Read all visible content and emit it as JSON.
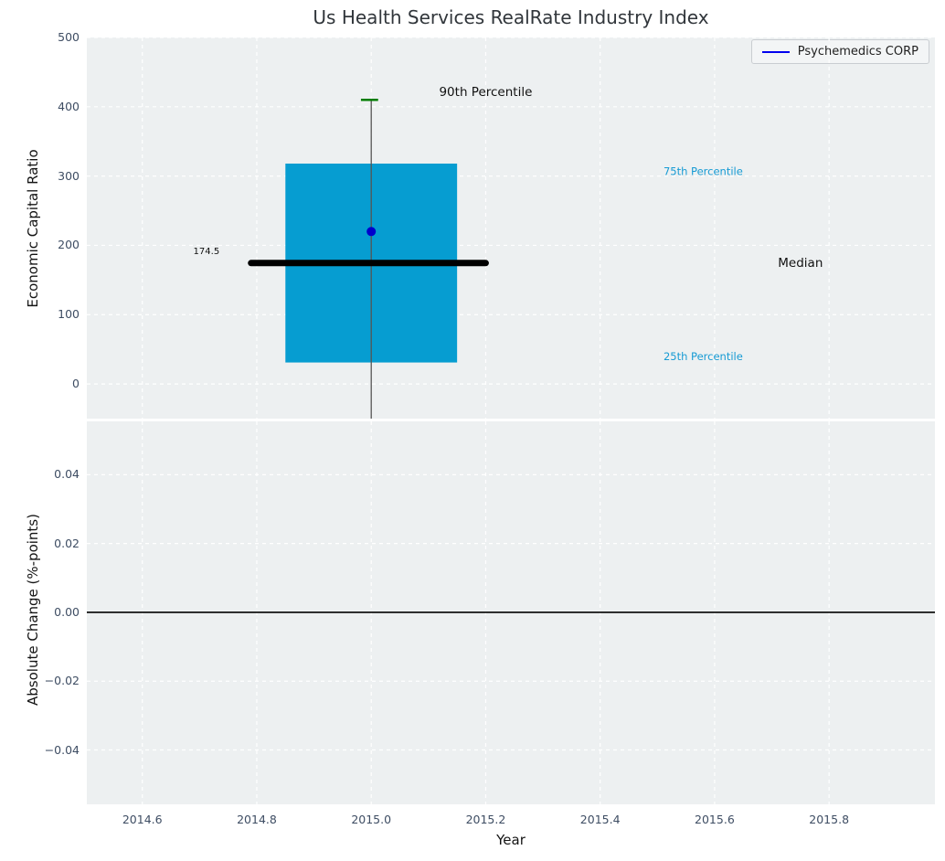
{
  "figure": {
    "title": "Us Health Services RealRate Industry Index"
  },
  "legend": {
    "label": "Psychemedics CORP",
    "line_color": "#0000ee"
  },
  "colors": {
    "figure_bg": "#ffffff",
    "axes_bg": "#edf0f1",
    "grid": "#ffffff",
    "tick_label": "#3e4d63",
    "axis_label": "#141414",
    "title": "#31363b",
    "box_fill": "#069dd1",
    "median_line": "#000000",
    "whisker": "#555555",
    "cap": "#007d00",
    "point": "#0000cc",
    "percentile_label": "#179bd4",
    "annotation": "#111111",
    "zero_line": "#000000"
  },
  "chart_data": [
    {
      "id": "top",
      "type": "boxplot",
      "title": "Us Health Services RealRate Industry Index",
      "ylabel": "Economic Capital Ratio",
      "xlim": [
        2014.503,
        2015.985
      ],
      "ylim": [
        -50,
        500
      ],
      "grid": "white dashed",
      "legend_position": "upper right",
      "yticks": [
        {
          "value": 500,
          "label": "500"
        },
        {
          "value": 400,
          "label": "400"
        },
        {
          "value": 300,
          "label": "300"
        },
        {
          "value": 200,
          "label": "200"
        },
        {
          "value": 100,
          "label": "100"
        },
        {
          "value": 0,
          "label": "0"
        }
      ],
      "xticks": [
        {
          "value": 2014.6
        },
        {
          "value": 2014.8
        },
        {
          "value": 2015.0
        },
        {
          "value": 2015.2
        },
        {
          "value": 2015.4
        },
        {
          "value": 2015.6
        },
        {
          "value": 2015.8
        }
      ],
      "box": {
        "name": "Psychemedics CORP",
        "x_center": 2015.0,
        "box_x": [
          2014.85,
          2015.15
        ],
        "median_x": [
          2014.79,
          2015.2
        ],
        "cap_x": [
          2014.982,
          2015.012
        ],
        "q1": 31,
        "median": 174.5,
        "q3": 318,
        "p90": 410,
        "company_value": 220,
        "whisker_low_clipped_below_axis": true
      },
      "annotations": [
        {
          "name": "median-value-label",
          "text": "174.5",
          "x": 2014.712,
          "y": 191,
          "size": 10,
          "color": "#111111"
        },
        {
          "name": "p90-label",
          "text": "90th Percentile",
          "x": 2015.2,
          "y": 421,
          "size": 13.5,
          "color": "#111111"
        },
        {
          "name": "p75-label",
          "text": "75th Percentile",
          "x": 2015.58,
          "y": 307,
          "size": 11.5,
          "color": "#179bd4"
        },
        {
          "name": "median-label",
          "text": "Median",
          "x": 2015.75,
          "y": 174,
          "size": 13.5,
          "color": "#111111"
        },
        {
          "name": "p25-label",
          "text": "25th Percentile",
          "x": 2015.58,
          "y": 40,
          "size": 11.5,
          "color": "#179bd4"
        }
      ]
    },
    {
      "id": "bottom",
      "type": "line",
      "ylabel": "Absolute Change (%-points)",
      "xlabel": "Year",
      "xlim": [
        2014.503,
        2015.985
      ],
      "ylim": [
        -0.0558,
        0.0555
      ],
      "grid": "white dashed",
      "zero_line": 0.0,
      "yticks": [
        {
          "value": 0.04,
          "label": "0.04"
        },
        {
          "value": 0.02,
          "label": "0.02"
        },
        {
          "value": 0.0,
          "label": "0.00"
        },
        {
          "value": -0.02,
          "label": "−0.02"
        },
        {
          "value": -0.04,
          "label": "−0.04"
        }
      ],
      "xticks": [
        {
          "value": 2014.6,
          "label": "2014.6"
        },
        {
          "value": 2014.8,
          "label": "2014.8"
        },
        {
          "value": 2015.0,
          "label": "2015.0"
        },
        {
          "value": 2015.2,
          "label": "2015.2"
        },
        {
          "value": 2015.4,
          "label": "2015.4"
        },
        {
          "value": 2015.6,
          "label": "2015.6"
        },
        {
          "value": 2015.8,
          "label": "2015.8"
        }
      ]
    }
  ]
}
